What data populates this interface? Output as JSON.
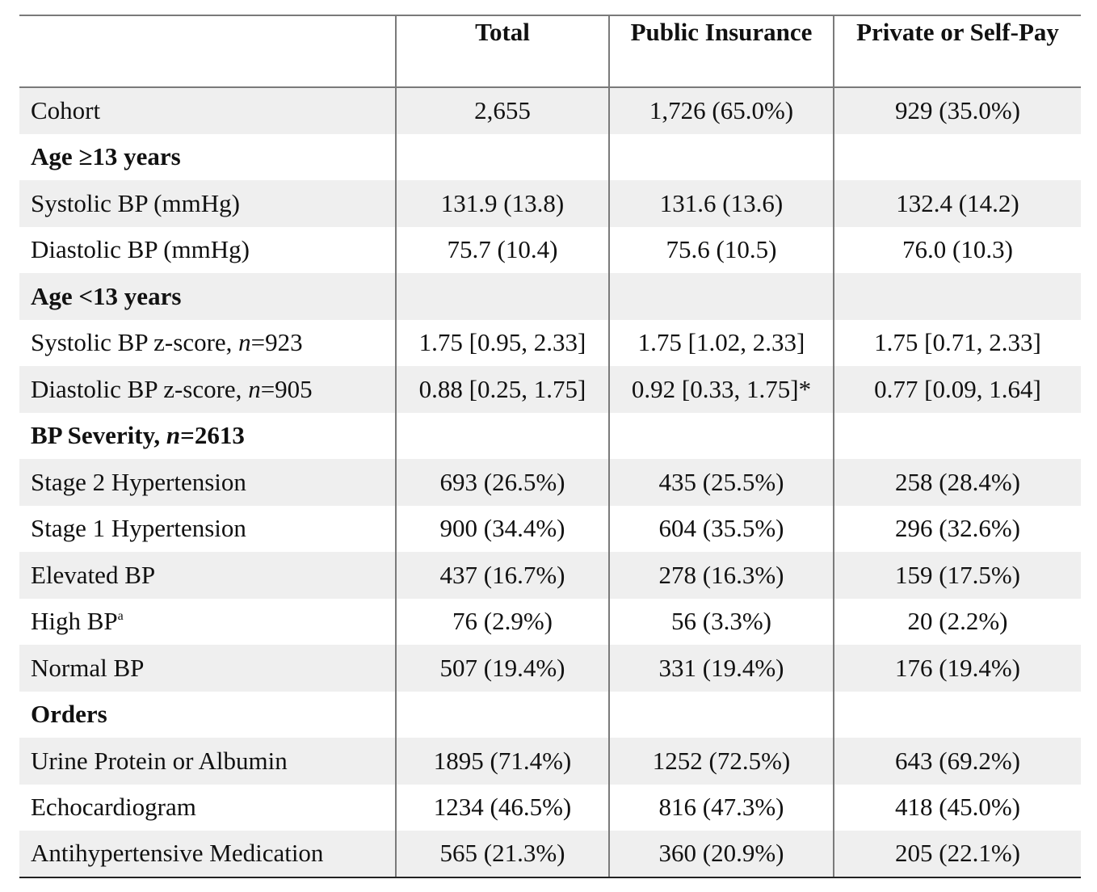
{
  "table": {
    "headers": [
      "",
      "Total",
      "Public Insurance",
      "Private or Self-Pay"
    ],
    "rows": [
      {
        "type": "data",
        "label": "Cohort",
        "values": [
          "2,655",
          "1,726 (65.0%)",
          "929 (35.0%)"
        ],
        "shaded": true
      },
      {
        "type": "section",
        "label": "Age ≥13 years",
        "shaded": false
      },
      {
        "type": "data",
        "label": "Systolic BP (mmHg)",
        "values": [
          "131.9 (13.8)",
          "131.6 (13.6)",
          "132.4 (14.2)"
        ],
        "shaded": true
      },
      {
        "type": "data",
        "label": "Diastolic BP (mmHg)",
        "values": [
          "75.7 (10.4)",
          "75.6 (10.5)",
          "76.0 (10.3)"
        ],
        "shaded": false
      },
      {
        "type": "section",
        "label": "Age <13 years",
        "shaded": true
      },
      {
        "type": "data",
        "label_pre": "Systolic BP z-score, ",
        "label_italic": "n",
        "label_post": "=923",
        "values": [
          "1.75 [0.95, 2.33]",
          "1.75 [1.02, 2.33]",
          "1.75 [0.71, 2.33]"
        ],
        "shaded": false
      },
      {
        "type": "data",
        "label_pre": "Diastolic BP z-score, ",
        "label_italic": "n",
        "label_post": "=905",
        "values": [
          "0.88 [0.25, 1.75]",
          "0.92 [0.33, 1.75]*",
          "0.77 [0.09, 1.64]"
        ],
        "shaded": true
      },
      {
        "type": "section",
        "label_pre": "BP Severity, ",
        "label_italic": "n",
        "label_post": "=2613",
        "shaded": false
      },
      {
        "type": "data",
        "label": "Stage 2 Hypertension",
        "values": [
          "693 (26.5%)",
          "435 (25.5%)",
          "258 (28.4%)"
        ],
        "shaded": true
      },
      {
        "type": "data",
        "label": "Stage 1 Hypertension",
        "values": [
          "900 (34.4%)",
          "604 (35.5%)",
          "296 (32.6%)"
        ],
        "shaded": false
      },
      {
        "type": "data",
        "label": "Elevated BP",
        "values": [
          "437 (16.7%)",
          "278 (16.3%)",
          "159 (17.5%)"
        ],
        "shaded": true
      },
      {
        "type": "data",
        "label": "High BP",
        "label_sup": "a",
        "values": [
          "76 (2.9%)",
          "56 (3.3%)",
          "20 (2.2%)"
        ],
        "shaded": false
      },
      {
        "type": "data",
        "label": "Normal BP",
        "values": [
          "507 (19.4%)",
          "331 (19.4%)",
          "176 (19.4%)"
        ],
        "shaded": true
      },
      {
        "type": "section",
        "label": "Orders",
        "shaded": false
      },
      {
        "type": "data",
        "label": "Urine Protein or Albumin",
        "values": [
          "1895 (71.4%)",
          "1252 (72.5%)",
          "643 (69.2%)"
        ],
        "shaded": true
      },
      {
        "type": "data",
        "label": "Echocardiogram",
        "values": [
          "1234 (46.5%)",
          "816 (47.3%)",
          "418 (45.0%)"
        ],
        "shaded": false
      },
      {
        "type": "data",
        "label": "Antihypertensive Medication",
        "values": [
          "565 (21.3%)",
          "360 (20.9%)",
          "205 (22.1%)"
        ],
        "shaded": true
      }
    ]
  }
}
